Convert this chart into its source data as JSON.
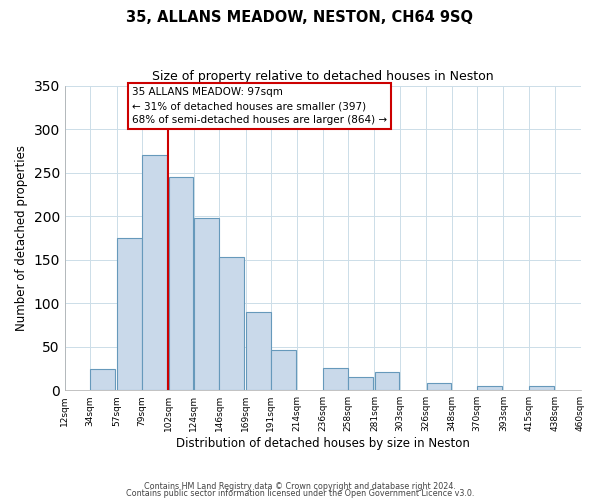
{
  "title": "35, ALLANS MEADOW, NESTON, CH64 9SQ",
  "subtitle": "Size of property relative to detached houses in Neston",
  "xlabel": "Distribution of detached houses by size in Neston",
  "ylabel": "Number of detached properties",
  "bar_left_edges": [
    12,
    34,
    57,
    79,
    102,
    124,
    146,
    169,
    191,
    214,
    236,
    258,
    281,
    303,
    326,
    348,
    370,
    393,
    415,
    438
  ],
  "bar_heights": [
    0,
    24,
    175,
    270,
    245,
    198,
    153,
    90,
    46,
    0,
    25,
    15,
    21,
    0,
    8,
    0,
    5,
    0,
    5,
    0
  ],
  "bin_width": 22,
  "bar_facecolor": "#c9d9ea",
  "bar_edgecolor": "#6699bb",
  "tick_labels": [
    "12sqm",
    "34sqm",
    "57sqm",
    "79sqm",
    "102sqm",
    "124sqm",
    "146sqm",
    "169sqm",
    "191sqm",
    "214sqm",
    "236sqm",
    "258sqm",
    "281sqm",
    "303sqm",
    "326sqm",
    "348sqm",
    "370sqm",
    "393sqm",
    "415sqm",
    "438sqm",
    "460sqm"
  ],
  "vline_x": 102,
  "vline_color": "#cc0000",
  "ylim": [
    0,
    350
  ],
  "yticks": [
    0,
    50,
    100,
    150,
    200,
    250,
    300,
    350
  ],
  "annotation_title": "35 ALLANS MEADOW: 97sqm",
  "annotation_line2": "← 31% of detached houses are smaller (397)",
  "annotation_line3": "68% of semi-detached houses are larger (864) →",
  "footer1": "Contains HM Land Registry data © Crown copyright and database right 2024.",
  "footer2": "Contains public sector information licensed under the Open Government Licence v3.0.",
  "background_color": "#ffffff",
  "grid_color": "#ccdde8"
}
